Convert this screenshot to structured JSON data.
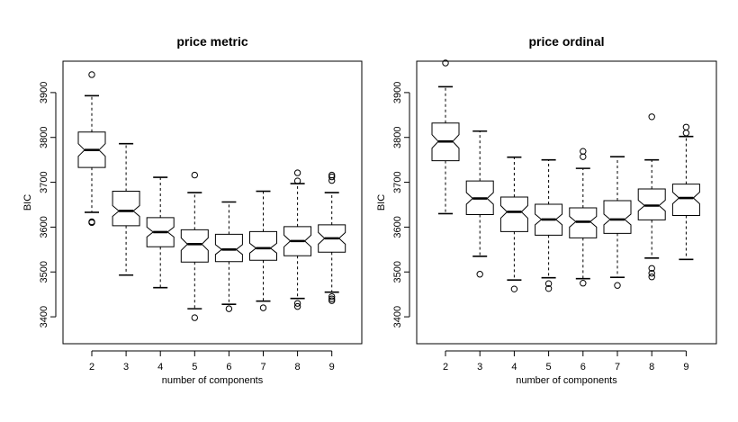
{
  "chart_data": [
    {
      "type": "boxplot",
      "title": "price metric",
      "xlabel": "number of components",
      "ylabel": "BIC",
      "categories": [
        "2",
        "3",
        "4",
        "5",
        "6",
        "7",
        "8",
        "9"
      ],
      "ylim": [
        3340,
        3970
      ],
      "yticks": [
        3400,
        3500,
        3600,
        3700,
        3800,
        3900
      ],
      "boxes": [
        {
          "cat": "2",
          "whisker_low": 3633,
          "q1": 3733,
          "median": 3772,
          "notch_low": 3758,
          "notch_high": 3786,
          "q3": 3812,
          "whisker_high": 3893,
          "outliers": [
            3940,
            3612,
            3610
          ]
        },
        {
          "cat": "3",
          "whisker_low": 3493,
          "q1": 3603,
          "median": 3636,
          "notch_low": 3624,
          "notch_high": 3648,
          "q3": 3680,
          "whisker_high": 3786,
          "outliers": []
        },
        {
          "cat": "4",
          "whisker_low": 3465,
          "q1": 3556,
          "median": 3589,
          "notch_low": 3578,
          "notch_high": 3600,
          "q3": 3621,
          "whisker_high": 3711,
          "outliers": []
        },
        {
          "cat": "5",
          "whisker_low": 3418,
          "q1": 3522,
          "median": 3562,
          "notch_low": 3548,
          "notch_high": 3576,
          "q3": 3594,
          "whisker_high": 3677,
          "outliers": [
            3716,
            3398
          ]
        },
        {
          "cat": "6",
          "whisker_low": 3428,
          "q1": 3523,
          "median": 3550,
          "notch_low": 3539,
          "notch_high": 3561,
          "q3": 3584,
          "whisker_high": 3656,
          "outliers": [
            3418
          ]
        },
        {
          "cat": "7",
          "whisker_low": 3435,
          "q1": 3526,
          "median": 3553,
          "notch_low": 3542,
          "notch_high": 3564,
          "q3": 3590,
          "whisker_high": 3680,
          "outliers": [
            3420
          ]
        },
        {
          "cat": "8",
          "whisker_low": 3441,
          "q1": 3536,
          "median": 3569,
          "notch_low": 3556,
          "notch_high": 3582,
          "q3": 3601,
          "whisker_high": 3697,
          "outliers": [
            3721,
            3703,
            3430,
            3423
          ]
        },
        {
          "cat": "9",
          "whisker_low": 3455,
          "q1": 3544,
          "median": 3575,
          "notch_low": 3562,
          "notch_high": 3588,
          "q3": 3605,
          "whisker_high": 3677,
          "outliers": [
            3716,
            3712,
            3704,
            3445,
            3440,
            3436
          ]
        }
      ]
    },
    {
      "type": "boxplot",
      "title": "price ordinal",
      "xlabel": "number of components",
      "ylabel": "BIC",
      "categories": [
        "2",
        "3",
        "4",
        "5",
        "6",
        "7",
        "8",
        "9"
      ],
      "ylim": [
        3340,
        3970
      ],
      "yticks": [
        3400,
        3500,
        3600,
        3700,
        3800,
        3900
      ],
      "boxes": [
        {
          "cat": "2",
          "whisker_low": 3630,
          "q1": 3748,
          "median": 3791,
          "notch_low": 3776,
          "notch_high": 3806,
          "q3": 3832,
          "whisker_high": 3913,
          "outliers": [
            3966
          ]
        },
        {
          "cat": "3",
          "whisker_low": 3535,
          "q1": 3628,
          "median": 3664,
          "notch_low": 3651,
          "notch_high": 3677,
          "q3": 3703,
          "whisker_high": 3814,
          "outliers": [
            3495
          ]
        },
        {
          "cat": "4",
          "whisker_low": 3482,
          "q1": 3590,
          "median": 3634,
          "notch_low": 3620,
          "notch_high": 3648,
          "q3": 3667,
          "whisker_high": 3756,
          "outliers": [
            3462
          ]
        },
        {
          "cat": "5",
          "whisker_low": 3487,
          "q1": 3582,
          "median": 3617,
          "notch_low": 3605,
          "notch_high": 3629,
          "q3": 3651,
          "whisker_high": 3750,
          "outliers": [
            3474,
            3463
          ]
        },
        {
          "cat": "6",
          "whisker_low": 3485,
          "q1": 3576,
          "median": 3612,
          "notch_low": 3600,
          "notch_high": 3624,
          "q3": 3643,
          "whisker_high": 3731,
          "outliers": [
            3769,
            3757,
            3475
          ]
        },
        {
          "cat": "7",
          "whisker_low": 3488,
          "q1": 3586,
          "median": 3617,
          "notch_low": 3605,
          "notch_high": 3629,
          "q3": 3659,
          "whisker_high": 3757,
          "outliers": [
            3470
          ]
        },
        {
          "cat": "8",
          "whisker_low": 3531,
          "q1": 3616,
          "median": 3648,
          "notch_low": 3636,
          "notch_high": 3660,
          "q3": 3685,
          "whisker_high": 3750,
          "outliers": [
            3846,
            3508,
            3497,
            3489
          ]
        },
        {
          "cat": "9",
          "whisker_low": 3528,
          "q1": 3626,
          "median": 3665,
          "notch_low": 3652,
          "notch_high": 3678,
          "q3": 3696,
          "whisker_high": 3802,
          "outliers": [
            3823,
            3810
          ]
        }
      ]
    }
  ]
}
